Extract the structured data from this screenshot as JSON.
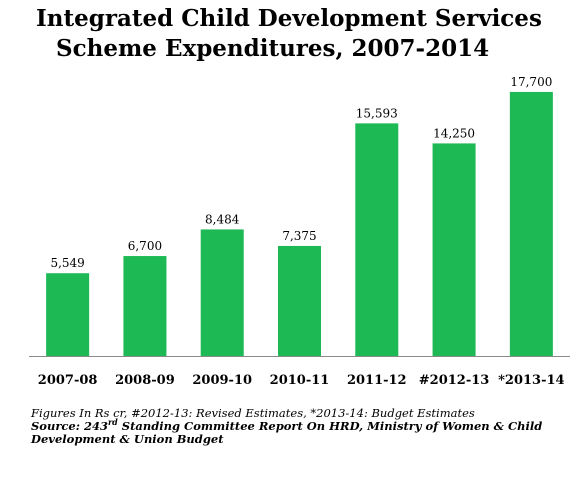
{
  "title_line1": "Integrated Child Development Services",
  "title_line2": "Scheme Expenditures, 2007-2014",
  "footnote": "Figures In Rs cr, #2012-13: Revised Estimates, *2013-14: Budget Estimates",
  "source_prefix": "Source:  243",
  "source_sup": "rd",
  "source_rest": "Standing Committee  Report On HRD, Ministry of Women & Child Development & Union Budget",
  "bar_color": "#1db954",
  "chart_data": {
    "type": "bar",
    "title": "Integrated Child Development Services Scheme Expenditures, 2007-2014",
    "categories": [
      "2007-08",
      "2008-09",
      "2009-10",
      "2010-11",
      "2011-12",
      "#2012-13",
      "*2013-14"
    ],
    "values": [
      5549,
      6700,
      8484,
      7375,
      15593,
      14250,
      17700
    ],
    "value_labels": [
      "5,549",
      "6,700",
      "8,484",
      "7,375",
      "15,593",
      "14,250",
      "17,700"
    ],
    "ylim": [
      0,
      18500
    ],
    "grid": false,
    "legend": "none"
  }
}
